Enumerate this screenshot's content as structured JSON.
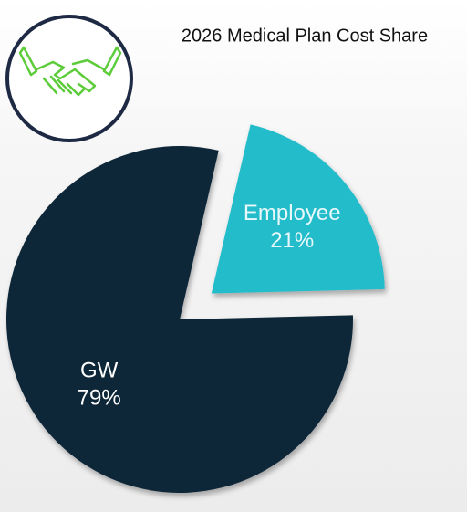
{
  "chart_data": {
    "type": "pie",
    "title": "2026 Medical Plan Cost Share",
    "categories": [
      "Employee",
      "GW"
    ],
    "values": [
      21,
      79
    ],
    "value_labels": [
      "21%",
      "79%"
    ],
    "colors": [
      "#23bccb",
      "#0c2638"
    ],
    "explode": [
      true,
      false
    ]
  }
}
